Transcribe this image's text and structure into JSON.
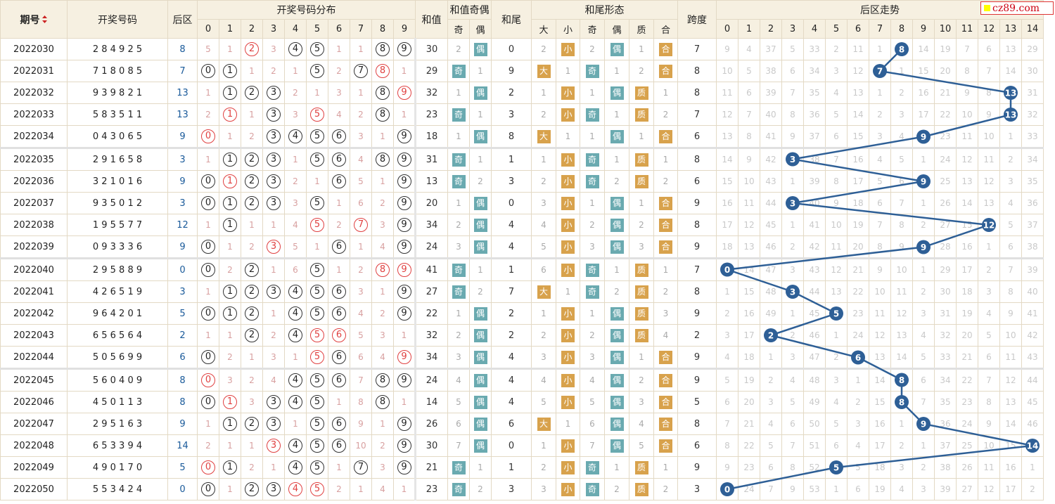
{
  "logo": "cz89.com",
  "headers": {
    "period": "期号",
    "winning": "开奖号码",
    "rear_zone": "后区",
    "distribution": "开奖号码分布",
    "sum": "和值",
    "sum_parity": "和值奇偶",
    "tail": "和尾",
    "tail_form": "和尾形态",
    "span": "跨度",
    "rear_trend": "后区走势",
    "odd": "奇",
    "even": "偶",
    "big": "大",
    "small": "小",
    "prime": "质",
    "composite": "合"
  },
  "digits": [
    "0",
    "1",
    "2",
    "3",
    "4",
    "5",
    "6",
    "7",
    "8",
    "9"
  ],
  "rear_digits": [
    "0",
    "1",
    "2",
    "3",
    "4",
    "5",
    "6",
    "7",
    "8",
    "9",
    "10",
    "11",
    "12",
    "13",
    "14"
  ],
  "rows": [
    {
      "period": "2022030",
      "w": [
        "2",
        "8",
        "4",
        "9",
        "2",
        "5"
      ],
      "rear": "8",
      "dist": [
        "5",
        "1",
        "②",
        "3",
        "④",
        "⑤",
        "1",
        "1",
        "⑧",
        "⑨"
      ],
      "sum": "30",
      "po": "2",
      "pe": "偶",
      "tail": "0",
      "fb": "2",
      "fs": "小",
      "fo": "2",
      "fe": "偶",
      "fp": "1",
      "fc": "合",
      "span": "7",
      "trend": [
        "9",
        "4",
        "37",
        "5",
        "33",
        "2",
        "11",
        "1",
        "8",
        "14",
        "19",
        "7",
        "6",
        "13",
        "29"
      ]
    },
    {
      "period": "2022031",
      "w": [
        "7",
        "1",
        "8",
        "0",
        "8",
        "5"
      ],
      "rear": "7",
      "dist": [
        "⓪",
        "①",
        "1",
        "2",
        "1",
        "⑤",
        "2",
        "⑦",
        "⑧",
        "1"
      ],
      "sum": "29",
      "po": "奇",
      "pe": "1",
      "tail": "9",
      "fb": "大",
      "fs": "1",
      "fo": "奇",
      "fe": "1",
      "fp": "2",
      "fc": "合",
      "span": "8",
      "trend": [
        "10",
        "5",
        "38",
        "6",
        "34",
        "3",
        "12",
        "7",
        "1",
        "15",
        "20",
        "8",
        "7",
        "14",
        "30"
      ]
    },
    {
      "period": "2022032",
      "w": [
        "9",
        "3",
        "9",
        "8",
        "2",
        "1"
      ],
      "rear": "13",
      "dist": [
        "1",
        "①",
        "②",
        "③",
        "2",
        "1",
        "3",
        "1",
        "⑧",
        "⑨"
      ],
      "sum": "32",
      "po": "1",
      "pe": "偶",
      "tail": "2",
      "fb": "1",
      "fs": "小",
      "fo": "1",
      "fe": "偶",
      "fp": "质",
      "fc": "1",
      "span": "8",
      "trend": [
        "11",
        "6",
        "39",
        "7",
        "35",
        "4",
        "13",
        "1",
        "2",
        "16",
        "21",
        "9",
        "8",
        "13",
        "31"
      ]
    },
    {
      "period": "2022033",
      "w": [
        "5",
        "8",
        "3",
        "5",
        "1",
        "1"
      ],
      "rear": "13",
      "dist": [
        "2",
        "①",
        "1",
        "③",
        "3",
        "⑤",
        "4",
        "2",
        "⑧",
        "1"
      ],
      "sum": "23",
      "po": "奇",
      "pe": "1",
      "tail": "3",
      "fb": "2",
      "fs": "小",
      "fo": "奇",
      "fe": "1",
      "fp": "质",
      "fc": "2",
      "span": "7",
      "trend": [
        "12",
        "7",
        "40",
        "8",
        "36",
        "5",
        "14",
        "2",
        "3",
        "17",
        "22",
        "10",
        "9",
        "13",
        "32"
      ]
    },
    {
      "period": "2022034",
      "w": [
        "0",
        "4",
        "3",
        "0",
        "6",
        "5"
      ],
      "rear": "9",
      "dist": [
        "⓪",
        "1",
        "2",
        "③",
        "④",
        "⑤",
        "⑥",
        "3",
        "1",
        "⑨"
      ],
      "sum": "18",
      "po": "1",
      "pe": "偶",
      "tail": "8",
      "fb": "大",
      "fs": "1",
      "fo": "1",
      "fe": "偶",
      "fp": "1",
      "fc": "合",
      "span": "6",
      "trend": [
        "13",
        "8",
        "41",
        "9",
        "37",
        "6",
        "15",
        "3",
        "4",
        "9",
        "23",
        "11",
        "10",
        "1",
        "33"
      ]
    },
    {
      "period": "2022035",
      "w": [
        "2",
        "9",
        "1",
        "6",
        "5",
        "8"
      ],
      "rear": "3",
      "dist": [
        "1",
        "①",
        "②",
        "③",
        "1",
        "⑤",
        "⑥",
        "4",
        "⑧",
        "⑨"
      ],
      "sum": "31",
      "po": "奇",
      "pe": "1",
      "tail": "1",
      "fb": "1",
      "fs": "小",
      "fo": "奇",
      "fe": "1",
      "fp": "质",
      "fc": "1",
      "span": "8",
      "trend": [
        "14",
        "9",
        "42",
        "3",
        "38",
        "7",
        "16",
        "4",
        "5",
        "1",
        "24",
        "12",
        "11",
        "2",
        "34"
      ]
    },
    {
      "period": "2022036",
      "w": [
        "3",
        "2",
        "1",
        "0",
        "1",
        "6"
      ],
      "rear": "9",
      "dist": [
        "⓪",
        "①",
        "②",
        "③",
        "2",
        "1",
        "⑥",
        "5",
        "1",
        "⑨"
      ],
      "sum": "13",
      "po": "奇",
      "pe": "2",
      "tail": "3",
      "fb": "2",
      "fs": "小",
      "fo": "奇",
      "fe": "2",
      "fp": "质",
      "fc": "2",
      "span": "6",
      "trend": [
        "15",
        "10",
        "43",
        "1",
        "39",
        "8",
        "17",
        "5",
        "6",
        "9",
        "25",
        "13",
        "12",
        "3",
        "35"
      ]
    },
    {
      "period": "2022037",
      "w": [
        "9",
        "3",
        "5",
        "0",
        "1",
        "2"
      ],
      "rear": "3",
      "dist": [
        "⓪",
        "①",
        "②",
        "③",
        "3",
        "⑤",
        "1",
        "6",
        "2",
        "⑨"
      ],
      "sum": "20",
      "po": "1",
      "pe": "偶",
      "tail": "0",
      "fb": "3",
      "fs": "小",
      "fo": "1",
      "fe": "偶",
      "fp": "1",
      "fc": "合",
      "span": "9",
      "trend": [
        "16",
        "11",
        "44",
        "3",
        "40",
        "9",
        "18",
        "6",
        "7",
        "1",
        "26",
        "14",
        "13",
        "4",
        "36"
      ]
    },
    {
      "period": "2022038",
      "w": [
        "1",
        "9",
        "5",
        "5",
        "7",
        "7"
      ],
      "rear": "12",
      "dist": [
        "1",
        "①",
        "1",
        "1",
        "4",
        "⑤",
        "2",
        "⑦",
        "3",
        "⑨"
      ],
      "sum": "34",
      "po": "2",
      "pe": "偶",
      "tail": "4",
      "fb": "4",
      "fs": "小",
      "fo": "2",
      "fe": "偶",
      "fp": "2",
      "fc": "合",
      "span": "8",
      "trend": [
        "17",
        "12",
        "45",
        "1",
        "41",
        "10",
        "19",
        "7",
        "8",
        "2",
        "27",
        "15",
        "12",
        "5",
        "37"
      ]
    },
    {
      "period": "2022039",
      "w": [
        "0",
        "9",
        "3",
        "3",
        "3",
        "6"
      ],
      "rear": "9",
      "dist": [
        "⓪",
        "1",
        "2",
        "③",
        "5",
        "1",
        "⑥",
        "1",
        "4",
        "⑨"
      ],
      "sum": "24",
      "po": "3",
      "pe": "偶",
      "tail": "4",
      "fb": "5",
      "fs": "小",
      "fo": "3",
      "fe": "偶",
      "fp": "3",
      "fc": "合",
      "span": "9",
      "trend": [
        "18",
        "13",
        "46",
        "2",
        "42",
        "11",
        "20",
        "8",
        "9",
        "9",
        "28",
        "16",
        "1",
        "6",
        "38"
      ]
    },
    {
      "period": "2022040",
      "w": [
        "2",
        "9",
        "5",
        "8",
        "8",
        "9"
      ],
      "rear": "0",
      "dist": [
        "⓪",
        "2",
        "②",
        "1",
        "6",
        "⑤",
        "1",
        "2",
        "⑧",
        "⑨"
      ],
      "sum": "41",
      "po": "奇",
      "pe": "1",
      "tail": "1",
      "fb": "6",
      "fs": "小",
      "fo": "奇",
      "fe": "1",
      "fp": "质",
      "fc": "1",
      "span": "7",
      "trend": [
        "0",
        "14",
        "47",
        "3",
        "43",
        "12",
        "21",
        "9",
        "10",
        "1",
        "29",
        "17",
        "2",
        "7",
        "39"
      ]
    },
    {
      "period": "2022041",
      "w": [
        "4",
        "2",
        "6",
        "5",
        "1",
        "9"
      ],
      "rear": "3",
      "dist": [
        "1",
        "①",
        "②",
        "③",
        "④",
        "⑤",
        "⑥",
        "3",
        "1",
        "⑨"
      ],
      "sum": "27",
      "po": "奇",
      "pe": "2",
      "tail": "7",
      "fb": "大",
      "fs": "1",
      "fo": "奇",
      "fe": "2",
      "fp": "质",
      "fc": "2",
      "span": "8",
      "trend": [
        "1",
        "15",
        "48",
        "3",
        "44",
        "13",
        "22",
        "10",
        "11",
        "2",
        "30",
        "18",
        "3",
        "8",
        "40"
      ]
    },
    {
      "period": "2022042",
      "w": [
        "9",
        "6",
        "4",
        "2",
        "0",
        "1"
      ],
      "rear": "5",
      "dist": [
        "⓪",
        "①",
        "②",
        "1",
        "④",
        "⑤",
        "⑥",
        "4",
        "2",
        "⑨"
      ],
      "sum": "22",
      "po": "1",
      "pe": "偶",
      "tail": "2",
      "fb": "1",
      "fs": "小",
      "fo": "1",
      "fe": "偶",
      "fp": "质",
      "fc": "3",
      "span": "9",
      "trend": [
        "2",
        "16",
        "49",
        "1",
        "45",
        "5",
        "23",
        "11",
        "12",
        "3",
        "31",
        "19",
        "4",
        "9",
        "41"
      ]
    },
    {
      "period": "2022043",
      "w": [
        "6",
        "5",
        "6",
        "5",
        "6",
        "4"
      ],
      "rear": "2",
      "dist": [
        "1",
        "1",
        "②",
        "2",
        "④",
        "⑤",
        "⑥",
        "5",
        "3",
        "1"
      ],
      "sum": "32",
      "po": "2",
      "pe": "偶",
      "tail": "2",
      "fb": "2",
      "fs": "小",
      "fo": "2",
      "fe": "偶",
      "fp": "质",
      "fc": "4",
      "span": "2",
      "trend": [
        "3",
        "17",
        "2",
        "2",
        "46",
        "1",
        "24",
        "12",
        "13",
        "4",
        "32",
        "20",
        "5",
        "10",
        "42"
      ]
    },
    {
      "period": "2022044",
      "w": [
        "5",
        "0",
        "5",
        "6",
        "9",
        "9"
      ],
      "rear": "6",
      "dist": [
        "⓪",
        "2",
        "1",
        "3",
        "1",
        "⑤",
        "⑥",
        "6",
        "4",
        "⑨"
      ],
      "sum": "34",
      "po": "3",
      "pe": "偶",
      "tail": "4",
      "fb": "3",
      "fs": "小",
      "fo": "3",
      "fe": "偶",
      "fp": "1",
      "fc": "合",
      "span": "9",
      "trend": [
        "4",
        "18",
        "1",
        "3",
        "47",
        "2",
        "6",
        "13",
        "14",
        "5",
        "33",
        "21",
        "6",
        "11",
        "43"
      ]
    },
    {
      "period": "2022045",
      "w": [
        "5",
        "6",
        "0",
        "4",
        "0",
        "9"
      ],
      "rear": "8",
      "dist": [
        "⓪",
        "3",
        "2",
        "4",
        "④",
        "⑤",
        "⑥",
        "7",
        "⑧",
        "⑨"
      ],
      "sum": "24",
      "po": "4",
      "pe": "偶",
      "tail": "4",
      "fb": "4",
      "fs": "小",
      "fo": "4",
      "fe": "偶",
      "fp": "2",
      "fc": "合",
      "span": "9",
      "trend": [
        "5",
        "19",
        "2",
        "4",
        "48",
        "3",
        "1",
        "14",
        "8",
        "6",
        "34",
        "22",
        "7",
        "12",
        "44"
      ]
    },
    {
      "period": "2022046",
      "w": [
        "4",
        "5",
        "0",
        "1",
        "1",
        "3"
      ],
      "rear": "8",
      "dist": [
        "⓪",
        "①",
        "3",
        "③",
        "④",
        "⑤",
        "1",
        "8",
        "⑧",
        "1"
      ],
      "sum": "14",
      "po": "5",
      "pe": "偶",
      "tail": "4",
      "fb": "5",
      "fs": "小",
      "fo": "5",
      "fe": "偶",
      "fp": "3",
      "fc": "合",
      "span": "5",
      "trend": [
        "6",
        "20",
        "3",
        "5",
        "49",
        "4",
        "2",
        "15",
        "8",
        "7",
        "35",
        "23",
        "8",
        "13",
        "45"
      ]
    },
    {
      "period": "2022047",
      "w": [
        "2",
        "9",
        "5",
        "1",
        "6",
        "3"
      ],
      "rear": "9",
      "dist": [
        "1",
        "①",
        "②",
        "③",
        "1",
        "⑤",
        "⑥",
        "9",
        "1",
        "⑨"
      ],
      "sum": "26",
      "po": "6",
      "pe": "偶",
      "tail": "6",
      "fb": "大",
      "fs": "1",
      "fo": "6",
      "fe": "偶",
      "fp": "4",
      "fc": "合",
      "span": "8",
      "trend": [
        "7",
        "21",
        "4",
        "6",
        "50",
        "5",
        "3",
        "16",
        "1",
        "9",
        "36",
        "24",
        "9",
        "14",
        "46"
      ]
    },
    {
      "period": "2022048",
      "w": [
        "6",
        "5",
        "3",
        "3",
        "9",
        "4"
      ],
      "rear": "14",
      "dist": [
        "2",
        "1",
        "1",
        "③",
        "④",
        "⑤",
        "⑥",
        "10",
        "2",
        "⑨"
      ],
      "sum": "30",
      "po": "7",
      "pe": "偶",
      "tail": "0",
      "fb": "1",
      "fs": "小",
      "fo": "7",
      "fe": "偶",
      "fp": "5",
      "fc": "合",
      "span": "6",
      "trend": [
        "8",
        "22",
        "5",
        "7",
        "51",
        "6",
        "4",
        "17",
        "2",
        "1",
        "37",
        "25",
        "10",
        "15",
        "14"
      ]
    },
    {
      "period": "2022049",
      "w": [
        "4",
        "9",
        "0",
        "1",
        "7",
        "0"
      ],
      "rear": "5",
      "dist": [
        "⓪",
        "①",
        "2",
        "1",
        "④",
        "⑤",
        "1",
        "⑦",
        "3",
        "⑨"
      ],
      "sum": "21",
      "po": "奇",
      "pe": "1",
      "tail": "1",
      "fb": "2",
      "fs": "小",
      "fo": "奇",
      "fe": "1",
      "fp": "质",
      "fc": "1",
      "span": "9",
      "trend": [
        "9",
        "23",
        "6",
        "8",
        "52",
        "5",
        "5",
        "18",
        "3",
        "2",
        "38",
        "26",
        "11",
        "16",
        "1"
      ]
    },
    {
      "period": "2022050",
      "w": [
        "5",
        "5",
        "3",
        "4",
        "2",
        "4"
      ],
      "rear": "0",
      "dist": [
        "⓪",
        "1",
        "②",
        "③",
        "④",
        "⑤",
        "2",
        "1",
        "4",
        "1"
      ],
      "sum": "23",
      "po": "奇",
      "pe": "2",
      "tail": "3",
      "fb": "3",
      "fs": "小",
      "fo": "奇",
      "fe": "2",
      "fp": "质",
      "fc": "2",
      "span": "3",
      "trend": [
        "0",
        "24",
        "7",
        "9",
        "53",
        "1",
        "6",
        "19",
        "4",
        "3",
        "39",
        "27",
        "12",
        "17",
        "2"
      ]
    }
  ],
  "colors": {
    "ball_red": "#e04040",
    "teal": "#6aaab0",
    "orange": "#d8a24c",
    "trend_blue": "#2e5f96",
    "rear_blue": "#1a5a9a"
  }
}
